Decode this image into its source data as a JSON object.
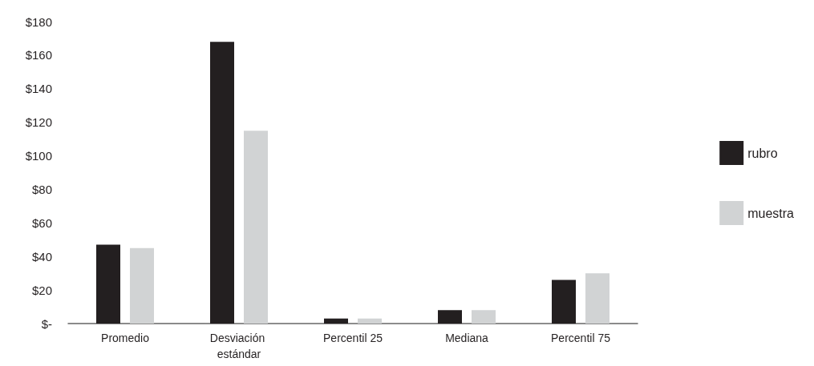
{
  "chart_data": {
    "type": "bar",
    "categories": [
      "Promedio",
      "Desviación estándar",
      "Percentil 25",
      "Mediana",
      "Percentil 75"
    ],
    "series": [
      {
        "name": "rubro",
        "color": "#231f20",
        "values": [
          47,
          168,
          3,
          8,
          26
        ]
      },
      {
        "name": "muestra",
        "color": "#d1d3d4",
        "values": [
          45,
          115,
          3,
          8,
          30
        ]
      }
    ],
    "ylim": [
      0,
      180
    ],
    "yticks": [
      {
        "value": 0,
        "label": "$-"
      },
      {
        "value": 20,
        "label": "$20"
      },
      {
        "value": 40,
        "label": "$40"
      },
      {
        "value": 60,
        "label": "$60"
      },
      {
        "value": 80,
        "label": "$80"
      },
      {
        "value": 100,
        "label": "$100"
      },
      {
        "value": 120,
        "label": "$120"
      },
      {
        "value": 140,
        "label": "$140"
      },
      {
        "value": 160,
        "label": "$160"
      },
      {
        "value": 180,
        "label": "$180"
      }
    ],
    "grid": false,
    "legend": "right"
  }
}
